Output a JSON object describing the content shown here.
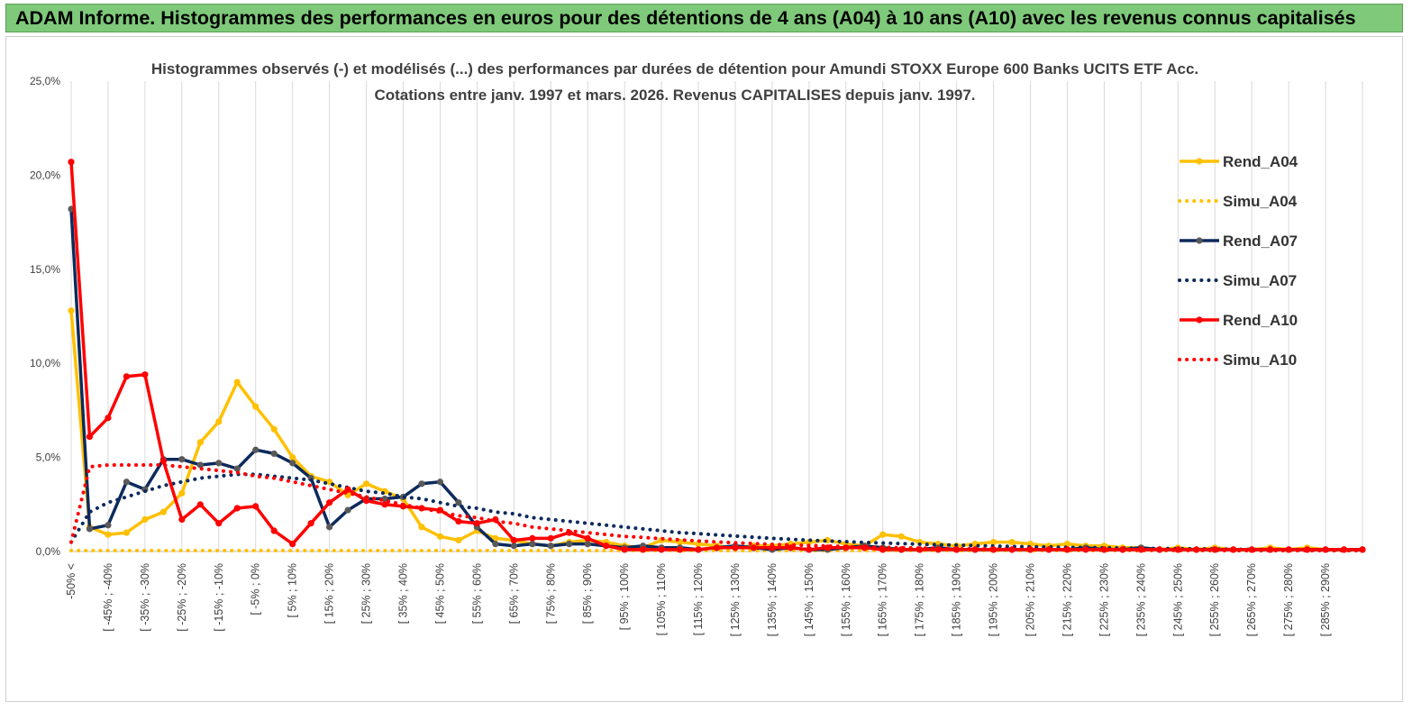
{
  "banner": {
    "title": "ADAM Informe. Histogrammes des performances en euros pour des détentions de 4 ans (A04) à 10 ans (A10) avec les revenus connus capitalisés"
  },
  "chart_data": {
    "type": "line",
    "title": "Histogrammes observés (-) et modélisés (...) des performances par durées de détention pour Amundi STOXX Europe 600 Banks UCITS ETF Acc.",
    "subtitle": "Cotations entre janv. 1997 et mars. 2026.  Revenus CAPITALISES depuis janv. 1997.",
    "xlabel": "",
    "ylabel": "",
    "ylim": [
      0,
      25
    ],
    "y_ticks": [
      "0,0%",
      "5,0%",
      "10,0%",
      "15,0%",
      "20,0%",
      "25,0%"
    ],
    "grid": "vertical",
    "legend_position": "right",
    "x_tick_labels": [
      "-50% <",
      "[ -45% ; -40%",
      "[ -35% ; -30%",
      "[ -25% ; -20%",
      "[ -15% ; -10%",
      "[ -5% ; 0%",
      "[ 5% ; 10%",
      "[ 15% ; 20%",
      "[ 25% ; 30%",
      "[ 35% ; 40%",
      "[ 45% ; 50%",
      "[ 55% ; 60%",
      "[ 65% ; 70%",
      "[ 75% ; 80%",
      "[ 85% ; 90%",
      "[ 95% ; 100%",
      "[ 105% ; 110%",
      "[ 115% ; 120%",
      "[ 125% ; 130%",
      "[ 135% ; 140%",
      "[ 145% ; 150%",
      "[ 155% ; 160%",
      "[ 165% ; 170%",
      "[ 175% ; 180%",
      "[ 185% ; 190%",
      "[ 195% ; 200%",
      "[ 205% ; 210%",
      "[ 215% ; 220%",
      "[ 225% ; 230%",
      "[ 235% ; 240%",
      "[ 245% ; 250%",
      "[ 255% ; 260%",
      "[ 265% ; 270%",
      "[ 275% ; 280%",
      "[ 285% ; 290%"
    ],
    "series": [
      {
        "name": "Rend_A04",
        "color": "#ffc000",
        "style": "solid",
        "values": [
          12.8,
          1.3,
          0.9,
          1.0,
          1.7,
          2.1,
          3.1,
          5.8,
          6.9,
          9.0,
          7.7,
          6.5,
          5.0,
          4.0,
          3.7,
          3.0,
          3.6,
          3.2,
          2.8,
          1.3,
          0.8,
          0.6,
          1.1,
          0.7,
          0.6,
          0.4,
          0.3,
          0.5,
          0.6,
          0.5,
          0.3,
          0.2,
          0.6,
          0.5,
          0.4,
          0.3,
          0.2,
          0.3,
          0.3,
          0.4,
          0.5,
          0.6,
          0.4,
          0.3,
          0.9,
          0.8,
          0.5,
          0.4,
          0.3,
          0.4,
          0.5,
          0.5,
          0.4,
          0.3,
          0.4,
          0.3,
          0.3,
          0.2,
          0.2,
          0.1,
          0.2,
          0.1,
          0.2,
          0.1,
          0.1,
          0.2,
          0.1,
          0.2,
          0.1,
          0.1,
          0.1
        ]
      },
      {
        "name": "Simu_A04",
        "color": "#ffc000",
        "style": "dotted",
        "values": [
          0.05,
          0.05,
          0.05,
          0.05,
          0.05,
          0.05,
          0.05,
          0.05,
          0.05,
          0.05,
          0.05,
          0.05,
          0.05,
          0.05,
          0.05,
          0.05,
          0.05,
          0.05,
          0.05,
          0.05,
          0.05,
          0.05,
          0.05,
          0.05,
          0.05,
          0.05,
          0.05,
          0.05,
          0.05,
          0.05,
          0.05,
          0.05,
          0.05,
          0.05,
          0.05,
          0.05,
          0.05,
          0.05,
          0.05,
          0.05,
          0.05,
          0.05,
          0.05,
          0.05,
          0.05,
          0.05,
          0.05,
          0.05,
          0.05,
          0.05,
          0.05,
          0.05,
          0.05,
          0.05,
          0.05,
          0.05,
          0.05,
          0.05,
          0.05,
          0.05,
          0.05,
          0.05,
          0.05,
          0.05,
          0.05,
          0.05,
          0.05,
          0.05,
          0.05,
          0.05,
          0.05
        ]
      },
      {
        "name": "Rend_A07",
        "color": "#0d2a5c",
        "style": "solid",
        "values": [
          18.2,
          1.2,
          1.4,
          3.7,
          3.3,
          4.9,
          4.9,
          4.6,
          4.7,
          4.4,
          5.4,
          5.2,
          4.7,
          3.9,
          1.3,
          2.2,
          2.8,
          2.8,
          2.9,
          3.6,
          3.7,
          2.6,
          1.3,
          0.4,
          0.3,
          0.4,
          0.3,
          0.4,
          0.4,
          0.3,
          0.2,
          0.3,
          0.2,
          0.2,
          0.1,
          0.2,
          0.3,
          0.2,
          0.1,
          0.2,
          0.1,
          0.1,
          0.2,
          0.3,
          0.2,
          0.1,
          0.1,
          0.2,
          0.1,
          0.1,
          0.1,
          0.1,
          0.1,
          0.1,
          0.1,
          0.2,
          0.1,
          0.1,
          0.2,
          0.1,
          0.1,
          0.1,
          0.1,
          0.1,
          0.1,
          0.1,
          0.1,
          0.1,
          0.1,
          0.1,
          0.1
        ]
      },
      {
        "name": "Simu_A07",
        "color": "#0d2a5c",
        "style": "dotted",
        "values": [
          0.5,
          2.1,
          2.6,
          2.9,
          3.2,
          3.5,
          3.7,
          3.9,
          4.0,
          4.1,
          4.1,
          4.0,
          3.9,
          3.8,
          3.6,
          3.4,
          3.2,
          3.1,
          2.9,
          2.8,
          2.6,
          2.4,
          2.3,
          2.1,
          2.0,
          1.8,
          1.7,
          1.6,
          1.5,
          1.4,
          1.3,
          1.2,
          1.1,
          1.0,
          0.95,
          0.88,
          0.82,
          0.76,
          0.7,
          0.65,
          0.6,
          0.56,
          0.52,
          0.48,
          0.45,
          0.42,
          0.39,
          0.36,
          0.34,
          0.31,
          0.29,
          0.27,
          0.25,
          0.24,
          0.22,
          0.21,
          0.19,
          0.18,
          0.17,
          0.16,
          0.15,
          0.14,
          0.13,
          0.12,
          0.11,
          0.1,
          0.1,
          0.09,
          0.09,
          0.08,
          0.08
        ]
      },
      {
        "name": "Rend_A10",
        "color": "#ff0000",
        "style": "solid",
        "values": [
          20.7,
          6.1,
          7.1,
          9.3,
          9.4,
          4.8,
          1.7,
          2.5,
          1.5,
          2.3,
          2.4,
          1.1,
          0.4,
          1.5,
          2.6,
          3.3,
          2.7,
          2.5,
          2.4,
          2.3,
          2.2,
          1.6,
          1.5,
          1.7,
          0.6,
          0.7,
          0.7,
          1.0,
          0.7,
          0.3,
          0.1,
          0.1,
          0.1,
          0.1,
          0.1,
          0.2,
          0.2,
          0.2,
          0.2,
          0.2,
          0.1,
          0.2,
          0.2,
          0.2,
          0.1,
          0.1,
          0.1,
          0.1,
          0.1,
          0.1,
          0.1,
          0.1,
          0.1,
          0.1,
          0.1,
          0.1,
          0.1,
          0.1,
          0.1,
          0.1,
          0.1,
          0.1,
          0.1,
          0.1,
          0.1,
          0.1,
          0.1,
          0.1,
          0.1,
          0.1,
          0.1
        ]
      },
      {
        "name": "Simu_A10",
        "color": "#ff0000",
        "style": "dotted",
        "values": [
          0.5,
          4.5,
          4.6,
          4.6,
          4.6,
          4.6,
          4.5,
          4.4,
          4.3,
          4.2,
          4.0,
          3.9,
          3.7,
          3.5,
          3.3,
          3.1,
          2.9,
          2.7,
          2.5,
          2.3,
          2.1,
          1.9,
          1.8,
          1.6,
          1.5,
          1.3,
          1.2,
          1.1,
          1.0,
          0.9,
          0.8,
          0.75,
          0.68,
          0.62,
          0.56,
          0.51,
          0.46,
          0.42,
          0.38,
          0.35,
          0.32,
          0.29,
          0.26,
          0.24,
          0.22,
          0.2,
          0.18,
          0.17,
          0.15,
          0.14,
          0.13,
          0.12,
          0.11,
          0.1,
          0.09,
          0.09,
          0.08,
          0.08,
          0.07,
          0.07,
          0.06,
          0.06,
          0.06,
          0.05,
          0.05,
          0.05,
          0.05,
          0.05,
          0.05,
          0.05,
          0.05
        ]
      }
    ]
  }
}
